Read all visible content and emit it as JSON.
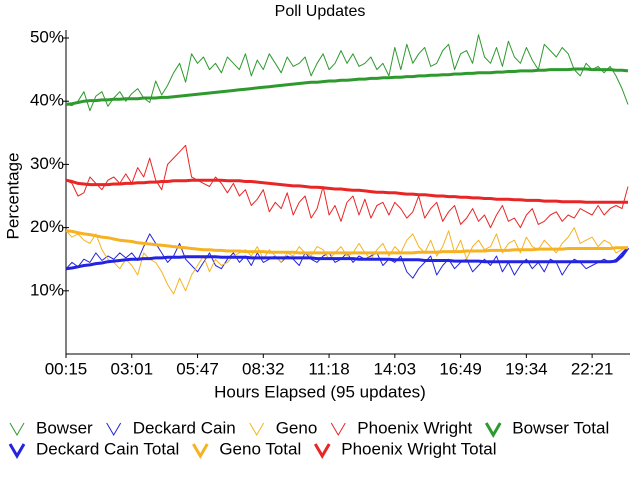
{
  "chart_data": {
    "type": "line",
    "title": "Poll Updates",
    "x_label": "Hours Elapsed (95 updates)",
    "y_label": "Percentage",
    "categories": [
      "00:15",
      null,
      null,
      null,
      null,
      null,
      null,
      null,
      null,
      null,
      null,
      "03:01",
      null,
      null,
      null,
      null,
      null,
      null,
      null,
      null,
      null,
      null,
      "05:47",
      null,
      null,
      null,
      null,
      null,
      null,
      null,
      null,
      null,
      null,
      "08:32",
      null,
      null,
      null,
      null,
      null,
      null,
      null,
      null,
      null,
      null,
      "11:18",
      null,
      null,
      null,
      null,
      null,
      null,
      null,
      null,
      null,
      null,
      "14:03",
      null,
      null,
      null,
      null,
      null,
      null,
      null,
      null,
      null,
      null,
      "16:49",
      null,
      null,
      null,
      null,
      null,
      null,
      null,
      null,
      null,
      null,
      "19:34",
      null,
      null,
      null,
      null,
      null,
      null,
      null,
      null,
      null,
      null,
      "22:21",
      null,
      null,
      null,
      null,
      null,
      null
    ],
    "ylim": [
      0,
      50
    ],
    "yticks": [
      {
        "value": 10,
        "label": "10%"
      },
      {
        "value": 20,
        "label": "20%"
      },
      {
        "value": 30,
        "label": "30%"
      },
      {
        "value": 40,
        "label": "40%"
      },
      {
        "value": 50,
        "label": "50%"
      }
    ],
    "series": [
      {
        "name": "Bowser",
        "color": "#2e9a2e",
        "line_width": 1,
        "values": [
          39.5,
          39.3,
          40,
          41.5,
          38.5,
          40.8,
          41.5,
          39.2,
          40.5,
          41.5,
          40,
          41.2,
          42,
          40.5,
          39.8,
          43.2,
          41,
          42.5,
          44.5,
          46,
          43,
          47.5,
          46,
          47,
          45,
          46,
          44.5,
          47,
          46,
          45,
          47.5,
          44,
          46.5,
          45,
          47.5,
          46,
          44.5,
          47,
          45.5,
          46,
          47,
          44,
          46,
          47.5,
          45,
          46,
          48,
          46,
          47.5,
          45.5,
          46,
          47,
          45,
          46,
          44,
          48.5,
          45,
          49,
          46,
          47.5,
          48.5,
          45.5,
          46,
          48,
          49,
          45,
          47.5,
          48,
          46,
          50.5,
          47,
          46,
          48.5,
          45.5,
          49.5,
          47,
          46,
          48.5,
          46.5,
          45,
          49,
          48,
          47,
          48.5,
          47.5,
          45,
          44,
          46,
          45,
          45.5,
          44.5,
          45.5,
          44,
          42,
          39.5
        ]
      },
      {
        "name": "Deckard Cain",
        "color": "#2424e0",
        "line_width": 1,
        "values": [
          13.5,
          14.5,
          13.8,
          15,
          14.5,
          16,
          14.8,
          15.5,
          15,
          16,
          15.2,
          16,
          14.8,
          17,
          19,
          17.5,
          16,
          14.5,
          15.5,
          17.5,
          15,
          14,
          13,
          14.5,
          16,
          14,
          13.5,
          15,
          16,
          14.5,
          15.5,
          14,
          16,
          14.5,
          15,
          15.5,
          14.5,
          15.5,
          15,
          14,
          16,
          15,
          14.5,
          15.5,
          16,
          14.5,
          15,
          16,
          14.5,
          15.5,
          15,
          15.5,
          16,
          14,
          15,
          14.5,
          15.5,
          13,
          12,
          13.5,
          14.5,
          15.5,
          12.5,
          14,
          15,
          13.5,
          14.5,
          15,
          13,
          14,
          15,
          14,
          15.5,
          13,
          14.5,
          12.5,
          14,
          15,
          13.5,
          14.5,
          13,
          15,
          14.5,
          12.5,
          14,
          15,
          14.5,
          13.5,
          14,
          14.5,
          15,
          14.5,
          15,
          16,
          17
        ]
      },
      {
        "name": "Geno",
        "color": "#f5b324",
        "line_width": 1,
        "values": [
          19.5,
          18.5,
          19,
          18,
          17.5,
          19,
          16.5,
          15,
          14.5,
          13.5,
          15,
          14,
          12.5,
          16,
          15,
          14.5,
          13,
          11,
          9.5,
          12,
          10,
          12.5,
          14,
          15.5,
          13,
          15,
          14,
          14.5,
          15.5,
          16,
          16.5,
          15.5,
          17,
          15,
          16.5,
          15.5,
          14.5,
          16,
          15.5,
          17,
          16,
          15.5,
          17,
          16.5,
          15,
          16,
          17,
          15.5,
          16,
          17.5,
          16,
          15,
          16.5,
          17.5,
          15.5,
          17,
          16,
          18,
          19,
          17,
          16,
          18,
          15.5,
          17,
          19.5,
          16,
          18,
          15,
          17,
          18,
          16.5,
          17,
          19,
          16,
          17.5,
          18,
          16,
          18.5,
          17,
          16.5,
          18,
          17,
          16,
          17.5,
          18.5,
          20,
          17.5,
          18,
          18.5,
          17,
          18,
          17.5,
          16,
          16.5,
          17
        ]
      },
      {
        "name": "Phoenix Wright",
        "color": "#e82626",
        "line_width": 1,
        "values": [
          27.5,
          27,
          25,
          25.5,
          28,
          27,
          26,
          27.5,
          28,
          27,
          28.5,
          27,
          29.5,
          28,
          31,
          27.5,
          26,
          30,
          31,
          32,
          33,
          28,
          27.5,
          27,
          26.5,
          28,
          27,
          25.5,
          27,
          25,
          26,
          23.5,
          24.5,
          26,
          22.5,
          24,
          23,
          25.5,
          22,
          24,
          25,
          21.5,
          23,
          26.5,
          22,
          23.5,
          21,
          24,
          25,
          22,
          24.5,
          21.5,
          23.5,
          24,
          22,
          24,
          23,
          21.5,
          22.5,
          25,
          21.5,
          23,
          24,
          21,
          22.5,
          23.5,
          20.5,
          21.5,
          23,
          21,
          22,
          20,
          22,
          23.5,
          21,
          21.5,
          20,
          22,
          23,
          20.5,
          21,
          22,
          22.5,
          21,
          22,
          21.5,
          23,
          22.5,
          22,
          23.5,
          22,
          23,
          23.5,
          23,
          26.5
        ]
      },
      {
        "name": "Bowser Total",
        "color": "#2e9a2e",
        "line_width": 3,
        "values": [
          39.5,
          39.6,
          39.8,
          40,
          40.1,
          40.1,
          40.2,
          40.2,
          40.3,
          40.3,
          40.4,
          40.4,
          40.4,
          40.5,
          40.5,
          40.5,
          40.6,
          40.6,
          40.7,
          40.8,
          40.9,
          41,
          41.1,
          41.2,
          41.3,
          41.4,
          41.5,
          41.6,
          41.7,
          41.8,
          41.9,
          42,
          42.1,
          42.2,
          42.3,
          42.4,
          42.5,
          42.6,
          42.7,
          42.8,
          42.9,
          43,
          43,
          43.1,
          43.2,
          43.2,
          43.3,
          43.3,
          43.4,
          43.5,
          43.5,
          43.6,
          43.6,
          43.7,
          43.7,
          43.8,
          43.8,
          43.9,
          43.9,
          44,
          44,
          44.1,
          44.1,
          44.2,
          44.2,
          44.3,
          44.3,
          44.4,
          44.4,
          44.5,
          44.5,
          44.5,
          44.6,
          44.6,
          44.7,
          44.7,
          44.8,
          44.8,
          44.8,
          44.9,
          44.9,
          45,
          45,
          45,
          45,
          45.1,
          45.1,
          45.1,
          45,
          45,
          45,
          45,
          44.9,
          44.9,
          44.8
        ]
      },
      {
        "name": "Deckard Cain Total",
        "color": "#2424e0",
        "line_width": 3,
        "values": [
          13.5,
          13.6,
          13.8,
          14,
          14.1,
          14.3,
          14.4,
          14.6,
          14.7,
          14.8,
          14.9,
          15,
          15,
          15.1,
          15.1,
          15.2,
          15.2,
          15.3,
          15.3,
          15.3,
          15.4,
          15.4,
          15.4,
          15.4,
          15.4,
          15.4,
          15.3,
          15.3,
          15.3,
          15.3,
          15.3,
          15.2,
          15.2,
          15.2,
          15.2,
          15.2,
          15.2,
          15.2,
          15.2,
          15.2,
          15.2,
          15.2,
          15.1,
          15.1,
          15.1,
          15.1,
          15.1,
          15.1,
          15.1,
          15,
          15,
          15,
          15,
          15,
          15,
          14.9,
          14.9,
          14.9,
          14.9,
          14.9,
          14.8,
          14.8,
          14.8,
          14.8,
          14.8,
          14.7,
          14.7,
          14.7,
          14.7,
          14.7,
          14.6,
          14.6,
          14.6,
          14.6,
          14.6,
          14.6,
          14.6,
          14.6,
          14.6,
          14.6,
          14.6,
          14.6,
          14.6,
          14.6,
          14.6,
          14.6,
          14.6,
          14.6,
          14.6,
          14.6,
          14.6,
          14.6,
          14.7,
          15.5,
          16.8
        ]
      },
      {
        "name": "Geno Total",
        "color": "#f5b324",
        "line_width": 3,
        "values": [
          19.5,
          19.4,
          19.2,
          19,
          18.9,
          18.7,
          18.5,
          18.4,
          18.2,
          18,
          17.9,
          17.8,
          17.6,
          17.5,
          17.4,
          17.3,
          17.2,
          17.1,
          17,
          16.9,
          16.8,
          16.7,
          16.6,
          16.5,
          16.5,
          16.4,
          16.4,
          16.3,
          16.3,
          16.3,
          16.2,
          16.2,
          16.2,
          16.2,
          16.1,
          16.1,
          16.1,
          16.1,
          16.1,
          16,
          16,
          16,
          16,
          16,
          16,
          16,
          16,
          16,
          16,
          16,
          16,
          16,
          16,
          16,
          16,
          16,
          16,
          16,
          16,
          16.1,
          16.1,
          16.1,
          16.1,
          16.2,
          16.2,
          16.2,
          16.2,
          16.3,
          16.3,
          16.3,
          16.3,
          16.4,
          16.4,
          16.4,
          16.4,
          16.5,
          16.5,
          16.5,
          16.5,
          16.6,
          16.6,
          16.6,
          16.6,
          16.6,
          16.7,
          16.7,
          16.7,
          16.7,
          16.7,
          16.7,
          16.7,
          16.7,
          16.8,
          16.8,
          16.8
        ]
      },
      {
        "name": "Phoenix Wright Total",
        "color": "#e82626",
        "line_width": 3,
        "values": [
          27.5,
          27.3,
          27,
          26.9,
          26.8,
          26.8,
          26.8,
          26.8,
          26.9,
          26.9,
          27,
          27,
          27.1,
          27.1,
          27.2,
          27.2,
          27.3,
          27.3,
          27.4,
          27.4,
          27.4,
          27.5,
          27.5,
          27.5,
          27.5,
          27.5,
          27.5,
          27.4,
          27.4,
          27.4,
          27.3,
          27.3,
          27.2,
          27.1,
          27,
          26.9,
          26.8,
          26.7,
          26.6,
          26.6,
          26.5,
          26.4,
          26.4,
          26.3,
          26.2,
          26.1,
          26.1,
          26,
          25.9,
          25.9,
          25.8,
          25.7,
          25.6,
          25.6,
          25.5,
          25.5,
          25.4,
          25.3,
          25.3,
          25.2,
          25.2,
          25.1,
          25,
          25,
          24.9,
          24.9,
          24.8,
          24.8,
          24.7,
          24.7,
          24.6,
          24.6,
          24.5,
          24.5,
          24.5,
          24.4,
          24.4,
          24.3,
          24.3,
          24.3,
          24.2,
          24.2,
          24.2,
          24.1,
          24.1,
          24.1,
          24.1,
          24,
          24,
          24,
          24,
          24,
          24,
          24,
          24
        ]
      }
    ]
  }
}
